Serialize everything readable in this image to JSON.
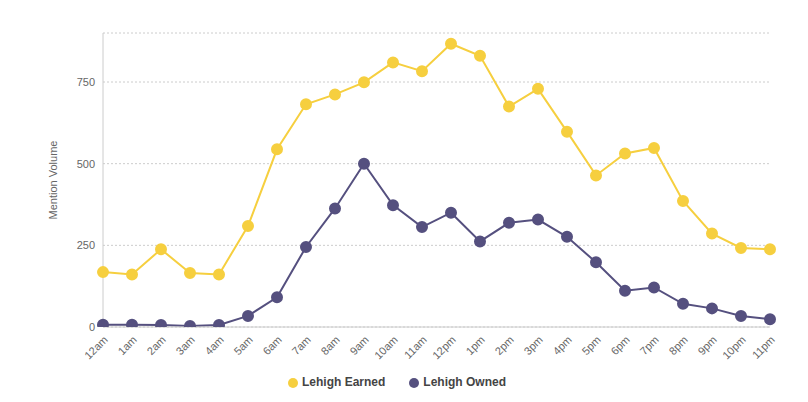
{
  "chart_data": {
    "type": "line",
    "y_label": "Mention Volume",
    "categories": [
      "12am",
      "1am",
      "2am",
      "3am",
      "4am",
      "5am",
      "6am",
      "7am",
      "8am",
      "9am",
      "10am",
      "11am",
      "12pm",
      "1pm",
      "2pm",
      "3pm",
      "4pm",
      "5pm",
      "6pm",
      "7pm",
      "8pm",
      "9pm",
      "10pm",
      "11pm"
    ],
    "series": [
      {
        "name": "Lehigh Earned",
        "color": "#f6cf3f",
        "marker": "circle",
        "values": [
          168,
          161,
          238,
          165,
          161,
          309,
          544,
          682,
          712,
          749,
          810,
          783,
          867,
          830,
          675,
          729,
          598,
          464,
          531,
          548,
          386,
          286,
          242,
          238
        ]
      },
      {
        "name": "Lehigh Owned",
        "color": "#55507f",
        "marker": "circle",
        "values": [
          7,
          7,
          6,
          3,
          6,
          34,
          91,
          245,
          363,
          500,
          373,
          306,
          350,
          262,
          319,
          329,
          276,
          198,
          111,
          121,
          71,
          57,
          34,
          24
        ]
      }
    ],
    "ylim": [
      0,
      900
    ],
    "yticks": [
      0,
      250,
      500,
      750
    ],
    "grid": true,
    "legend": "bottom"
  }
}
